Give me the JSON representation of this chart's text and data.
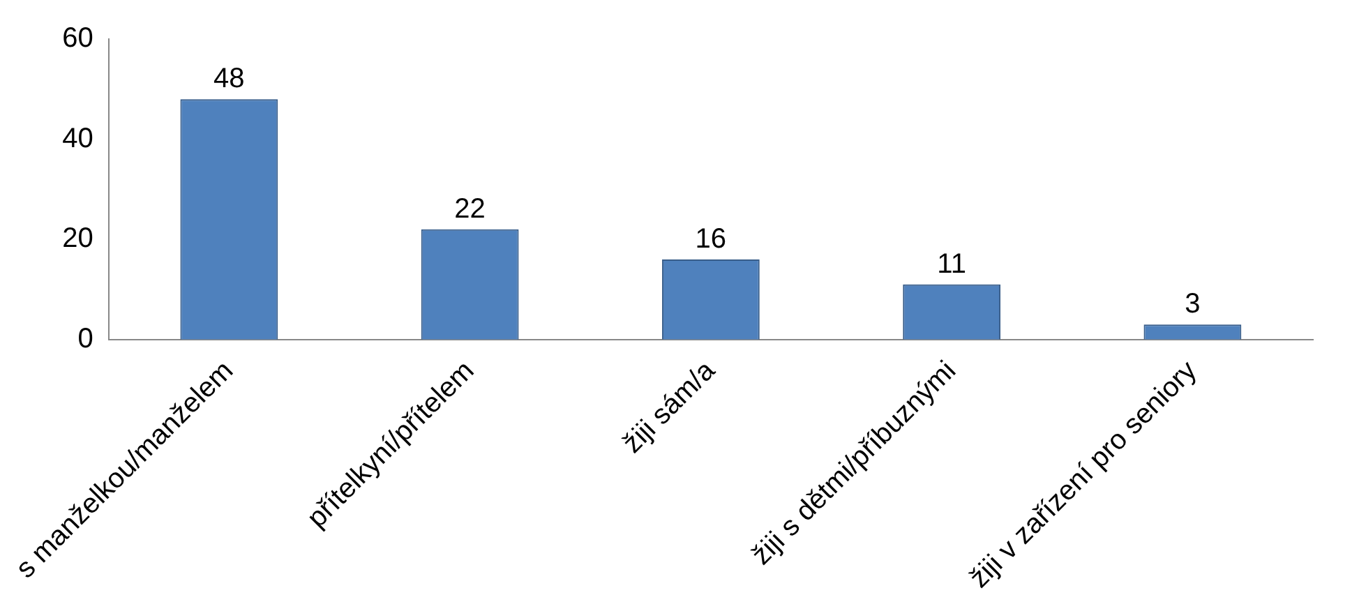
{
  "chart_data": {
    "type": "bar",
    "categories": [
      "s manželkou/manželem",
      "přítelkyní/přítelem",
      "žiji sám/a",
      "žiji s dětmi/příbuznými",
      "žiji v zařízení pro seniory"
    ],
    "values": [
      48,
      22,
      16,
      11,
      3
    ],
    "color": "#4f81bd",
    "ylim": [
      0,
      60
    ],
    "yticks": [
      0,
      20,
      40,
      60
    ],
    "grid": false,
    "legend": false,
    "data_labels": true
  }
}
